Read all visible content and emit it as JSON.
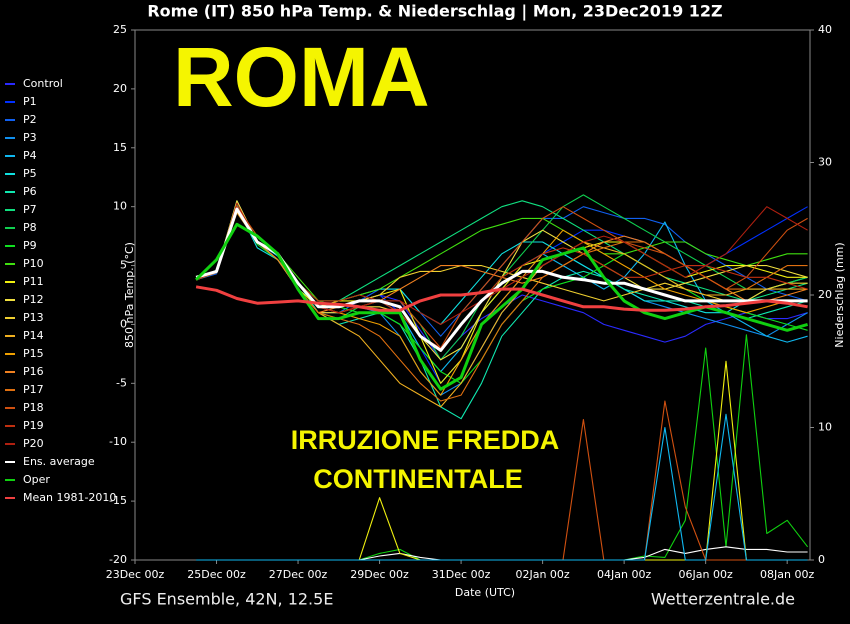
{
  "chart_data": {
    "type": "line",
    "title": "Rome  (IT)  850 hPa Temp. & Niederschlag | Mon, 23Dec2019 12Z",
    "annotations": [
      "ROMA",
      "IRRUZIONE FREDDA",
      "CONTINENTALE"
    ],
    "footer_left": "GFS Ensemble, 42N, 12.5E",
    "footer_right": "Wetterzentrale.de",
    "xlabel": "Date (UTC)",
    "ylabel": "850 hPa Temp. (°C)",
    "y2label": "Niederschlag (mm)",
    "xlim": [
      0,
      16.56
    ],
    "xticks": [
      {
        "value": 0,
        "label": "23Dec 00z"
      },
      {
        "value": 2,
        "label": "25Dec 00z"
      },
      {
        "value": 4,
        "label": "27Dec 00z"
      },
      {
        "value": 6,
        "label": "29Dec 00z"
      },
      {
        "value": 8,
        "label": "31Dec 00z"
      },
      {
        "value": 10,
        "label": "02Jan 00z"
      },
      {
        "value": 12,
        "label": "04Jan 00z"
      },
      {
        "value": 14,
        "label": "06Jan 00z"
      },
      {
        "value": 16,
        "label": "08Jan 00z"
      }
    ],
    "ylim": [
      -20,
      25
    ],
    "yticks": [
      -20,
      -15,
      -10,
      -5,
      0,
      5,
      10,
      15,
      20,
      25
    ],
    "y2lim": [
      0,
      40
    ],
    "y2ticks": [
      0,
      10,
      20,
      30,
      40
    ],
    "x": [
      1.5,
      2,
      2.5,
      3,
      3.5,
      4,
      4.5,
      5,
      5.5,
      6,
      6.5,
      7,
      7.5,
      8,
      8.5,
      9,
      9.5,
      10,
      10.5,
      11,
      11.5,
      12,
      12.5,
      13,
      13.5,
      14,
      14.5,
      15,
      15.5,
      16,
      16.5
    ],
    "series": [
      {
        "name": "Control",
        "color": "#2a2aff",
        "values": [
          3.8,
          4.5,
          9.5,
          7,
          6,
          3.5,
          1.5,
          1.5,
          2,
          2.5,
          2,
          -0.5,
          -3,
          -1,
          0.5,
          1.5,
          2.5,
          2,
          1.5,
          1,
          0,
          -0.5,
          -1,
          -1.5,
          -1,
          0,
          0.5,
          1,
          0.5,
          0.5,
          1
        ]
      },
      {
        "name": "P1",
        "color": "#0030ff",
        "values": [
          3.8,
          4.5,
          10,
          7,
          5.5,
          3.5,
          2,
          1.5,
          2,
          2.5,
          1,
          -2,
          -5,
          -3,
          0,
          2,
          4,
          6,
          7,
          8,
          8,
          7.5,
          7,
          6,
          5,
          5,
          6,
          7,
          8,
          9,
          10
        ]
      },
      {
        "name": "P2",
        "color": "#1060f0",
        "values": [
          3.8,
          4.3,
          10,
          7,
          6,
          3,
          1,
          1,
          2,
          3,
          3,
          1,
          -1,
          1,
          3,
          5,
          7,
          9,
          9,
          10,
          9.5,
          9,
          9,
          8.5,
          7,
          6,
          5,
          4,
          3,
          2.5,
          2
        ]
      },
      {
        "name": "P3",
        "color": "#1090f0",
        "values": [
          3.8,
          4.4,
          10.5,
          7,
          5.5,
          3,
          1.5,
          1,
          1.5,
          1,
          -1,
          -4,
          -6,
          -5,
          -2,
          1,
          3,
          5,
          6,
          5,
          4,
          3,
          2,
          1.5,
          1,
          0.5,
          0,
          -0.5,
          -1,
          0,
          1
        ]
      },
      {
        "name": "P4",
        "color": "#10b8f0",
        "values": [
          3.8,
          4.6,
          9.8,
          7,
          5.8,
          3.5,
          1.5,
          1.5,
          2,
          2,
          1,
          -2,
          -4,
          -2,
          1,
          3,
          5,
          6,
          5,
          4,
          3,
          4,
          6,
          8.7,
          5,
          2,
          1,
          0,
          -1,
          -1.5,
          -1
        ]
      },
      {
        "name": "P5",
        "color": "#10e0e0",
        "values": [
          3.8,
          4.5,
          10,
          6.5,
          5.5,
          3,
          1.5,
          2,
          2.5,
          3,
          3,
          1,
          0,
          2,
          4,
          6,
          7,
          7,
          6,
          5,
          4,
          3,
          2,
          2,
          1.5,
          1,
          1,
          2,
          3,
          3.5,
          4
        ]
      },
      {
        "name": "P6",
        "color": "#10e8b0",
        "values": [
          3.8,
          4.5,
          10,
          7,
          6,
          3.5,
          1,
          0,
          0.5,
          1,
          0,
          -3,
          -7,
          -8,
          -5,
          -1,
          1,
          3,
          4,
          4.5,
          4,
          3,
          2.5,
          2,
          2,
          1.5,
          1,
          0.5,
          1,
          1.5,
          2
        ]
      },
      {
        "name": "P7",
        "color": "#10e080",
        "values": [
          3.8,
          4.5,
          10.2,
          7,
          6,
          3.5,
          2,
          2,
          3,
          4,
          5,
          6,
          7,
          8,
          9,
          10,
          10.5,
          10,
          9,
          8,
          7,
          6,
          5,
          4,
          3.5,
          3,
          2.5,
          2,
          2.5,
          3,
          3.5
        ]
      },
      {
        "name": "P8",
        "color": "#10d050",
        "values": [
          3.8,
          4.4,
          10,
          7,
          6,
          3,
          1,
          0.5,
          1.5,
          2,
          2,
          0,
          -3,
          -1,
          2,
          4,
          6,
          8,
          10,
          11,
          10,
          9,
          8,
          7,
          6,
          5,
          4,
          3,
          3,
          3.5,
          4
        ]
      },
      {
        "name": "P9",
        "color": "#10e020",
        "values": [
          3.8,
          4.6,
          9.9,
          6.8,
          5.5,
          3.5,
          2,
          1.5,
          1,
          1,
          0,
          -2,
          -4,
          -5,
          -3,
          0,
          2,
          3,
          3.5,
          4,
          5,
          6,
          5,
          4,
          3,
          2,
          1.5,
          1,
          0.5,
          0,
          -0.5
        ]
      },
      {
        "name": "P10",
        "color": "#40e010",
        "values": [
          3.8,
          4.5,
          10,
          7,
          6,
          4,
          2,
          2,
          2.5,
          3,
          4,
          5,
          6,
          7,
          8,
          8.5,
          9,
          9,
          8,
          7,
          6,
          6,
          6.5,
          7,
          7,
          6,
          5.5,
          5,
          5.5,
          6,
          6
        ]
      },
      {
        "name": "P11",
        "color": "#f0f010",
        "values": [
          3.8,
          4.5,
          10,
          7,
          6,
          3,
          1.5,
          2,
          2,
          2.5,
          3,
          -1,
          -5,
          -3,
          1,
          3,
          5,
          5.5,
          6,
          6.5,
          7,
          7,
          6,
          5,
          4,
          4.5,
          5,
          5,
          4.5,
          4,
          4
        ]
      },
      {
        "name": "P12",
        "color": "#f0e040",
        "values": [
          3.8,
          4.5,
          10.5,
          7,
          5.5,
          3,
          1,
          1,
          1.5,
          1.5,
          1,
          -1,
          -3,
          -2,
          1,
          4,
          7,
          8,
          7,
          6,
          5,
          4,
          3,
          3,
          3.5,
          4,
          4.5,
          5,
          5,
          4.5,
          4
        ]
      },
      {
        "name": "P13",
        "color": "#f0d030",
        "values": [
          3.8,
          4.4,
          10,
          7,
          6,
          3.5,
          1.5,
          1.5,
          2,
          2.5,
          4,
          4.5,
          4.5,
          5,
          5,
          4.5,
          4,
          3.5,
          3,
          2.5,
          2,
          2.5,
          3,
          3.5,
          3,
          2.5,
          2,
          2,
          3,
          3.5,
          3.5
        ]
      },
      {
        "name": "P14",
        "color": "#f0b020",
        "values": [
          3.8,
          4.5,
          10,
          7,
          6,
          3,
          1,
          0,
          -1,
          -3,
          -5,
          -6,
          -7,
          -5,
          -2,
          1,
          3,
          5,
          6,
          7,
          6.5,
          6,
          5,
          4,
          3,
          2.5,
          2.5,
          3,
          3,
          3,
          3
        ]
      },
      {
        "name": "P15",
        "color": "#f0a000",
        "values": [
          3.8,
          4.5,
          9.5,
          7,
          6,
          3.5,
          1.5,
          1,
          0.5,
          0,
          -1,
          -4,
          -6,
          -3,
          0,
          2,
          4,
          6,
          8,
          7,
          6,
          5,
          4,
          3,
          2.5,
          2,
          1.5,
          1,
          1.5,
          2,
          2
        ]
      },
      {
        "name": "P16",
        "color": "#f08020",
        "values": [
          3.8,
          4.5,
          10,
          7,
          5.5,
          3,
          1,
          1.5,
          2,
          2,
          3,
          4,
          5,
          5,
          4.5,
          4,
          3.5,
          4,
          5,
          6,
          7,
          7.5,
          7,
          6,
          5,
          4,
          3,
          2,
          2,
          2.5,
          3
        ]
      },
      {
        "name": "P17",
        "color": "#e07010",
        "values": [
          3.8,
          4.5,
          10,
          7,
          6,
          3,
          1,
          0.5,
          0,
          -1,
          -3,
          -5,
          -6.5,
          -6,
          -3,
          0,
          2,
          4,
          5,
          6,
          6.5,
          7,
          7,
          6,
          5,
          4,
          3,
          3,
          4,
          5,
          5
        ]
      },
      {
        "name": "P18",
        "color": "#d05010",
        "values": [
          3.8,
          4.4,
          10,
          7.5,
          6,
          3.5,
          1.5,
          1,
          1.5,
          2,
          2,
          0,
          -2,
          1,
          3,
          5,
          7,
          9,
          10,
          9,
          8,
          7,
          6.5,
          6,
          5,
          4,
          3,
          4,
          6,
          8,
          9
        ]
      },
      {
        "name": "P19",
        "color": "#c03010",
        "values": [
          3.8,
          4.5,
          10,
          7,
          6,
          3.5,
          2,
          2,
          2.5,
          2,
          1,
          -1,
          -2,
          0,
          2,
          4,
          5,
          6,
          6.5,
          6,
          5,
          4,
          4,
          4.5,
          5,
          5,
          4.5,
          4,
          4,
          3.5,
          3
        ]
      },
      {
        "name": "P20",
        "color": "#b02010",
        "values": [
          3.8,
          4.5,
          10.3,
          7,
          6,
          3.5,
          1.5,
          1,
          1.5,
          2,
          2,
          1,
          0,
          1,
          2,
          3,
          4,
          5,
          6,
          7,
          7.5,
          7,
          6,
          5,
          4,
          5,
          6,
          8,
          10,
          9,
          8
        ]
      },
      {
        "name": "Ens. average",
        "color": "#ffffff",
        "values": [
          4,
          4.5,
          9.8,
          7,
          6,
          3.5,
          1.5,
          1.5,
          2,
          2,
          1.5,
          -1,
          -2.2,
          0,
          2,
          3.5,
          4.5,
          4.5,
          4,
          3.8,
          3.5,
          3.5,
          3,
          2.5,
          2,
          2,
          2,
          2,
          2,
          2,
          2
        ]
      },
      {
        "name": "Oper",
        "color": "#10d010",
        "values": [
          3.8,
          5.5,
          8.5,
          7.5,
          6,
          3,
          0.5,
          0.5,
          1,
          1,
          1,
          -3,
          -5.5,
          -4.5,
          0,
          1.5,
          3,
          5.5,
          6,
          6.5,
          4,
          2,
          1,
          0.5,
          1,
          1.5,
          1,
          0.5,
          0,
          -0.5,
          0
        ]
      },
      {
        "name": "Mean 1981-2010",
        "color": "#f04040",
        "values": [
          3.2,
          2.9,
          2.2,
          1.8,
          1.9,
          2,
          1.8,
          1.7,
          1.5,
          1.2,
          1.2,
          2,
          2.5,
          2.5,
          2.7,
          3,
          3,
          2.5,
          2,
          1.5,
          1.5,
          1.3,
          1.2,
          1.2,
          1.3,
          1.5,
          1.6,
          1.8,
          2,
          1.8,
          1.5
        ]
      },
      {
        "axis": "y2",
        "color": "#10d010",
        "values": [
          0,
          0,
          0,
          0,
          0,
          0,
          0,
          0,
          0,
          0.5,
          0.8,
          0,
          0,
          0,
          0,
          0,
          0,
          0,
          0,
          0,
          0,
          0,
          0.3,
          0.2,
          3,
          16,
          1,
          17,
          2,
          3,
          1
        ]
      },
      {
        "axis": "y2",
        "color": "#ffffff",
        "values": [
          0,
          0,
          0,
          0,
          0,
          0,
          0,
          0,
          0,
          0.3,
          0.5,
          0.2,
          0,
          0,
          0,
          0,
          0,
          0,
          0,
          0,
          0,
          0,
          0.2,
          0.8,
          0.5,
          0.8,
          1,
          0.8,
          0.8,
          0.6,
          0.6
        ]
      },
      {
        "axis": "y2",
        "color": "#f0f010",
        "values": [
          0,
          0,
          0,
          0,
          0,
          0,
          0,
          0,
          0,
          4.7,
          0.5,
          0,
          0,
          0,
          0,
          0,
          0,
          0,
          0,
          0,
          0,
          0,
          0,
          0,
          0,
          0,
          15,
          0,
          0,
          0,
          0
        ]
      },
      {
        "axis": "y2",
        "color": "#d05010",
        "values": [
          0,
          0,
          0,
          0,
          0,
          0,
          0,
          0,
          0,
          0,
          0,
          0,
          0,
          0,
          0,
          0,
          0,
          0,
          0,
          10.6,
          0,
          0,
          0,
          12,
          4,
          0,
          0,
          0,
          0,
          0,
          0
        ]
      },
      {
        "axis": "y2",
        "color": "#10b8f0",
        "values": [
          0,
          0,
          0,
          0,
          0,
          0,
          0,
          0,
          0,
          0,
          0,
          0,
          0,
          0,
          0,
          0,
          0,
          0,
          0,
          0,
          0,
          0,
          0,
          10,
          0,
          0,
          11,
          0,
          0,
          0,
          0
        ]
      }
    ]
  }
}
